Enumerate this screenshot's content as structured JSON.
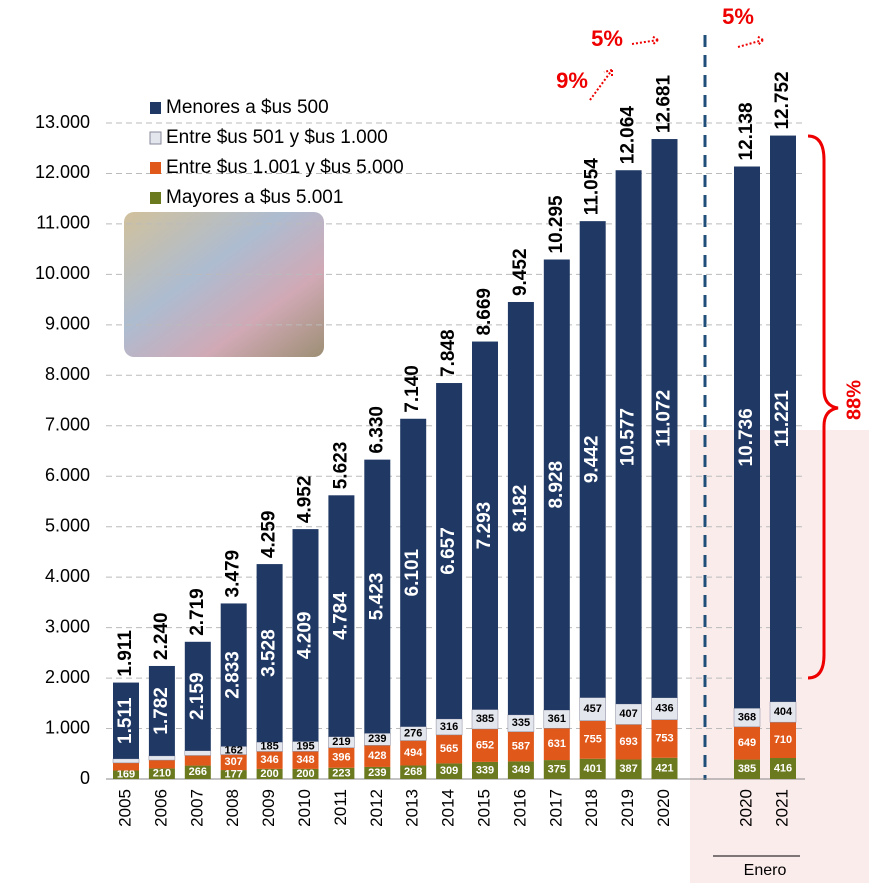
{
  "chart_data": {
    "type": "stacked-bar",
    "categories": [
      "2005",
      "2006",
      "2007",
      "2008",
      "2009",
      "2010",
      "2011",
      "2012",
      "2013",
      "2014",
      "2015",
      "2016",
      "2017",
      "2018",
      "2019",
      "2020",
      "2020",
      "2021"
    ],
    "series": [
      {
        "name": "Menores a $us 500",
        "color": "#1f3864",
        "values": [
          1511,
          1782,
          2159,
          2833,
          3528,
          4209,
          4784,
          5423,
          6101,
          6657,
          7293,
          8182,
          8928,
          9442,
          10577,
          11072,
          10736,
          11221
        ],
        "value_labels": [
          "1.511",
          "1.782",
          "2.159",
          "2.833",
          "3.528",
          "4.209",
          "4.784",
          "5.423",
          "6.101",
          "6.657",
          "7.293",
          "8.182",
          "8.928",
          "9.442",
          "10.577",
          "11.072",
          "10.736",
          "11.221"
        ]
      },
      {
        "name": "Entre $us 501 y $us 1.000",
        "color": "#e4e6ee",
        "values": [
          81,
          83,
          94,
          162,
          185,
          195,
          219,
          239,
          276,
          316,
          385,
          335,
          361,
          457,
          407,
          436,
          368,
          404
        ],
        "value_labels": [
          null,
          null,
          null,
          "162",
          "185",
          "195",
          "219",
          "239",
          "276",
          "316",
          "385",
          "335",
          "361",
          "457",
          "407",
          "436",
          "368",
          "404"
        ]
      },
      {
        "name": "Entre $us 1.001 y $us 5.000",
        "color": "#e0581a",
        "values": [
          150,
          165,
          200,
          307,
          346,
          348,
          396,
          428,
          494,
          565,
          652,
          587,
          631,
          755,
          693,
          753,
          649,
          710
        ],
        "value_labels": [
          null,
          null,
          null,
          "307",
          "346",
          "348",
          "396",
          "428",
          "494",
          "565",
          "652",
          "587",
          "631",
          "755",
          "693",
          "753",
          "649",
          "710"
        ]
      },
      {
        "name": "Mayores a $us 5.001",
        "color": "#6b7a1f",
        "values": [
          169,
          210,
          266,
          177,
          200,
          200,
          223,
          239,
          268,
          309,
          339,
          349,
          375,
          401,
          387,
          421,
          385,
          416
        ],
        "value_labels": [
          "169",
          "210",
          "266",
          "177",
          "200",
          "200",
          "223",
          "239",
          "268",
          "309",
          "339",
          "349",
          "375",
          "401",
          "387",
          "421",
          "385",
          "416"
        ]
      }
    ],
    "totals": {
      "values": [
        1911,
        2240,
        2719,
        3479,
        4259,
        4952,
        5623,
        6330,
        7140,
        7848,
        8669,
        9452,
        10295,
        11054,
        12064,
        12681,
        12138,
        12752
      ],
      "value_labels": [
        "1.911",
        "2.240",
        "2.719",
        "3.479",
        "4.259",
        "4.952",
        "5.623",
        "6.330",
        "7.140",
        "7.848",
        "8.669",
        "9.452",
        "10.295",
        "11.054",
        "12.064",
        "12.681",
        "12.138",
        "12.752"
      ]
    },
    "ylim": [
      0,
      13000
    ],
    "yticks": [
      0,
      {
        "value": 1000,
        "label": "1.000"
      },
      {
        "value": 2000,
        "label": "2.000"
      },
      {
        "value": 3000,
        "label": "3.000"
      },
      {
        "value": 4000,
        "label": "4.000"
      },
      {
        "value": 5000,
        "label": "5.000"
      },
      {
        "value": 6000,
        "label": "6.000"
      },
      {
        "value": 7000,
        "label": "7.000"
      },
      {
        "value": 8000,
        "label": "8.000"
      },
      {
        "value": 9000,
        "label": "9.000"
      },
      {
        "value": 10000,
        "label": "10.000"
      },
      {
        "value": 11000,
        "label": "11.000"
      },
      {
        "value": 12000,
        "label": "12.000"
      },
      {
        "value": 13000,
        "label": "13.000"
      }
    ],
    "grid": true,
    "annotations": {
      "growth_2019": "9%",
      "growth_2020": "5%",
      "growth_enero": "5%",
      "share": "88%",
      "period": "Enero"
    }
  }
}
